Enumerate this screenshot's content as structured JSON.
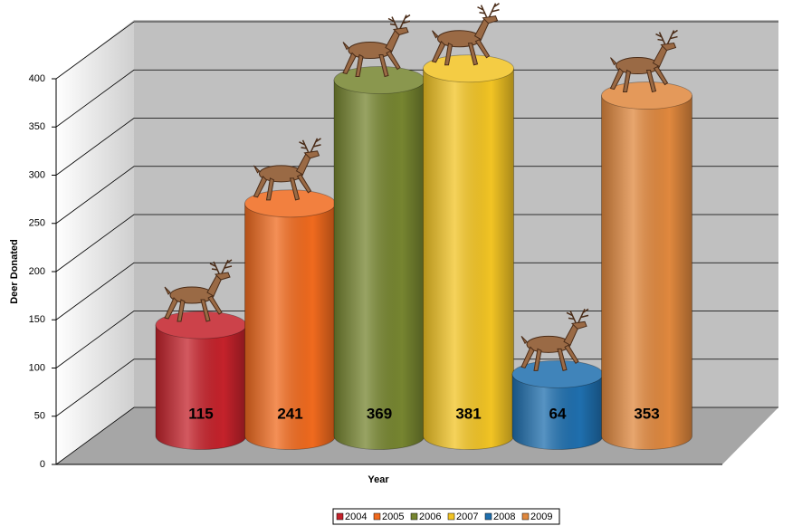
{
  "chart_data": {
    "type": "cylinder3d",
    "x_label": "Year",
    "y_label": "Deer Donated",
    "series": [
      {
        "name": "2004",
        "color": "#c4222b",
        "values": [
          115
        ]
      },
      {
        "name": "2005",
        "color": "#f06a1e",
        "values": [
          241
        ]
      },
      {
        "name": "2006",
        "color": "#768530",
        "values": [
          369
        ]
      },
      {
        "name": "2007",
        "color": "#f2c424",
        "values": [
          381
        ]
      },
      {
        "name": "2008",
        "color": "#1f6fae",
        "values": [
          64
        ]
      },
      {
        "name": "2009",
        "color": "#e0883e",
        "values": [
          353
        ]
      }
    ],
    "ylim": [
      0,
      400
    ],
    "yticks": [
      0,
      50,
      100,
      150,
      200,
      250,
      300,
      350,
      400
    ],
    "grid": true,
    "legend": "bottom"
  }
}
